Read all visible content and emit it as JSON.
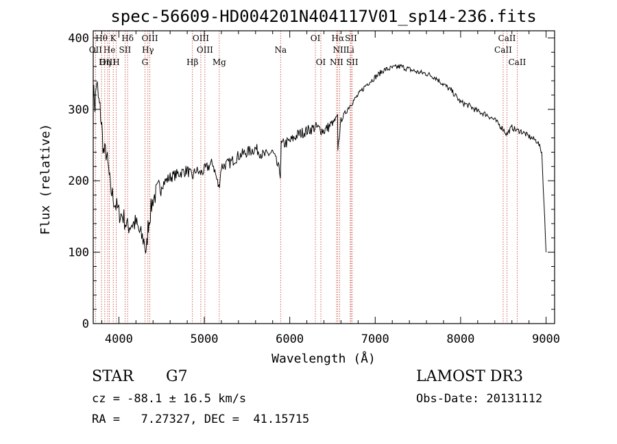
{
  "chart_data": {
    "type": "line",
    "title": "spec-56609-HD004201N404117V01_sp14-236.fits",
    "xlabel": "Wavelength (Å)",
    "ylabel": "Flux (relative)",
    "xlim": [
      3700,
      9100
    ],
    "ylim": [
      0,
      410
    ],
    "xticks": [
      4000,
      5000,
      6000,
      7000,
      8000,
      9000
    ],
    "yticks": [
      0,
      100,
      200,
      300,
      400
    ],
    "series": [
      {
        "name": "flux",
        "x": [
          3700,
          3720,
          3740,
          3760,
          3780,
          3800,
          3820,
          3850,
          3880,
          3900,
          3950,
          4000,
          4050,
          4100,
          4150,
          4200,
          4250,
          4300,
          4320,
          4340,
          4360,
          4400,
          4450,
          4500,
          4550,
          4600,
          4700,
          4800,
          4860,
          4900,
          4950,
          5000,
          5100,
          5170,
          5200,
          5300,
          5400,
          5500,
          5600,
          5700,
          5800,
          5890,
          5900,
          6000,
          6100,
          6200,
          6300,
          6400,
          6500,
          6560,
          6563,
          6600,
          6700,
          6800,
          6900,
          7000,
          7100,
          7200,
          7300,
          7400,
          7500,
          7600,
          7700,
          7800,
          7900,
          8000,
          8100,
          8200,
          8300,
          8400,
          8500,
          8540,
          8600,
          8660,
          8700,
          8800,
          8900,
          8950,
          9000
        ],
        "y": [
          330,
          305,
          340,
          315,
          300,
          275,
          240,
          240,
          215,
          190,
          170,
          155,
          150,
          135,
          140,
          140,
          125,
          115,
          95,
          135,
          150,
          175,
          185,
          195,
          200,
          205,
          210,
          215,
          205,
          215,
          210,
          215,
          225,
          190,
          220,
          225,
          235,
          240,
          245,
          235,
          240,
          210,
          250,
          255,
          265,
          270,
          275,
          270,
          280,
          290,
          245,
          285,
          305,
          320,
          335,
          345,
          355,
          358,
          360,
          356,
          352,
          350,
          345,
          335,
          325,
          310,
          305,
          297,
          293,
          285,
          272,
          265,
          275,
          270,
          270,
          262,
          255,
          240,
          100
        ]
      }
    ],
    "lines": [
      {
        "label": "Hθ",
        "row": 0,
        "x": 3797
      },
      {
        "label": "K",
        "row": 0,
        "x": 3934
      },
      {
        "label": "Hδ",
        "row": 0,
        "x": 4102
      },
      {
        "label": "OIII",
        "row": 0,
        "x": 4363
      },
      {
        "label": "OIII",
        "row": 0,
        "x": 4959
      },
      {
        "label": "OI",
        "row": 0,
        "x": 6300
      },
      {
        "label": "Hα",
        "row": 0,
        "x": 6563
      },
      {
        "label": "SII",
        "row": 0,
        "x": 6717
      },
      {
        "label": "CaII",
        "row": 0,
        "x": 8542
      },
      {
        "label": "OII",
        "row": 1,
        "x": 3727
      },
      {
        "label": "He",
        "row": 1,
        "x": 3889
      },
      {
        "label": "SII",
        "row": 1,
        "x": 4072
      },
      {
        "label": "Hγ",
        "row": 1,
        "x": 4340
      },
      {
        "label": "OIII",
        "row": 1,
        "x": 5007
      },
      {
        "label": "Na",
        "row": 1,
        "x": 5893
      },
      {
        "label": "NII",
        "row": 1,
        "x": 6584
      },
      {
        "label": "Li",
        "row": 1,
        "x": 6708
      },
      {
        "label": "CaII",
        "row": 1,
        "x": 8498
      },
      {
        "label": "OIII",
        "row": 2,
        "x": 3869
      },
      {
        "label": "Hη",
        "row": 2,
        "x": 3835
      },
      {
        "label": "H",
        "row": 2,
        "x": 3969
      },
      {
        "label": "G",
        "row": 2,
        "x": 4305
      },
      {
        "label": "Hβ",
        "row": 2,
        "x": 4861
      },
      {
        "label": "Mg",
        "row": 2,
        "x": 5175
      },
      {
        "label": "OI",
        "row": 2,
        "x": 6364
      },
      {
        "label": "NII",
        "row": 2,
        "x": 6548
      },
      {
        "label": "SII",
        "row": 2,
        "x": 6731
      },
      {
        "label": "CaII",
        "row": 2,
        "x": 8662
      }
    ]
  },
  "info": {
    "object_type": "STAR",
    "subclass": "G7",
    "survey": "LAMOST DR3",
    "redshift": "cz = -88.1 ± 16.5 km/s",
    "obs_date": "Obs-Date: 20131112",
    "coords": "RA =   7.27327, DEC =  41.15715"
  }
}
